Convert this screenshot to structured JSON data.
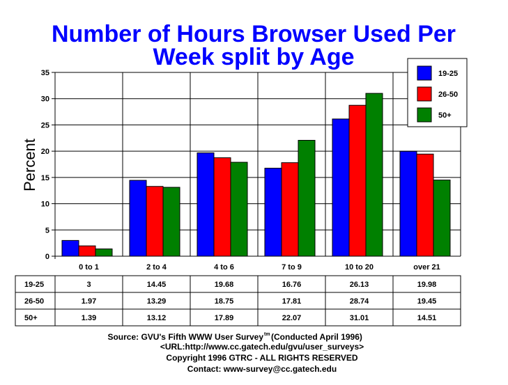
{
  "chart_data": {
    "type": "bar",
    "title_lines": [
      "Number of Hours Browser Used Per",
      "Week split by Age"
    ],
    "ylabel": "Percent",
    "xlabel": "",
    "ylim": [
      0,
      35
    ],
    "yticks": [
      "0",
      "5",
      "10",
      "15",
      "20",
      "25",
      "30",
      "35"
    ],
    "grid": true,
    "legend_position": "top-right",
    "categories": [
      "0 to 1",
      "2 to 4",
      "4 to 6",
      "7 to 9",
      "10 to 20",
      "over 21"
    ],
    "series": [
      {
        "name": "19-25",
        "color": "#0000ff",
        "values": [
          3,
          14.45,
          19.68,
          16.76,
          26.13,
          19.98
        ],
        "labels": [
          "3",
          "14.45",
          "19.68",
          "16.76",
          "26.13",
          "19.98"
        ]
      },
      {
        "name": "26-50",
        "color": "#ff0000",
        "values": [
          1.97,
          13.29,
          18.75,
          17.81,
          28.74,
          19.45
        ],
        "labels": [
          "1.97",
          "13.29",
          "18.75",
          "17.81",
          "28.74",
          "19.45"
        ]
      },
      {
        "name": "50+",
        "color": "#008000",
        "values": [
          1.39,
          13.12,
          17.89,
          22.07,
          31.01,
          14.51
        ],
        "labels": [
          "1.39",
          "13.12",
          "17.89",
          "22.07",
          "31.01",
          "14.51"
        ]
      }
    ]
  },
  "footer": {
    "source": "Source: GVU's Fifth WWW User Survey",
    "source_sup": "tm",
    "conducted": "(Conducted April 1996)",
    "url": "<URL:http://www.cc.gatech.edu/gvu/user_surveys>",
    "copyright": "Copyright 1996 GTRC -  ALL RIGHTS RESERVED",
    "contact": "Contact: www-survey@cc.gatech.edu"
  }
}
